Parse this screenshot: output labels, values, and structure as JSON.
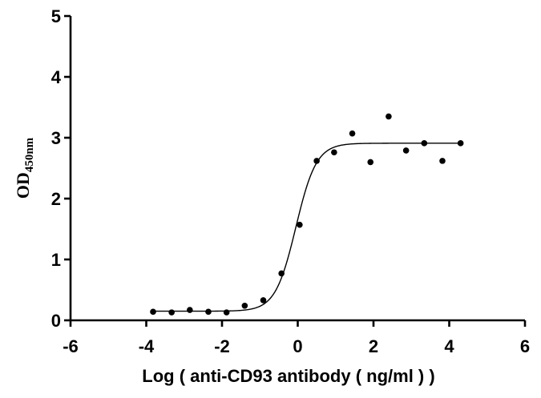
{
  "chart_data": {
    "type": "scatter",
    "ylabel_main": "OD",
    "ylabel_sub": "450nm",
    "xlabel": "Log ( anti-CD93 antibody ( ng/ml )    )",
    "xlim": [
      -6,
      6
    ],
    "ylim": [
      0,
      5
    ],
    "xticks": [
      "-6",
      "-4",
      "-2",
      "0",
      "2",
      "4",
      "6"
    ],
    "yticks": [
      "0",
      "1",
      "2",
      "3",
      "4",
      "5"
    ],
    "grid": false,
    "points": [
      {
        "x": -3.82,
        "y": 0.14
      },
      {
        "x": -3.33,
        "y": 0.13
      },
      {
        "x": -2.85,
        "y": 0.17
      },
      {
        "x": -2.36,
        "y": 0.14
      },
      {
        "x": -1.88,
        "y": 0.13
      },
      {
        "x": -1.4,
        "y": 0.24
      },
      {
        "x": -0.91,
        "y": 0.33
      },
      {
        "x": -0.43,
        "y": 0.77
      },
      {
        "x": 0.05,
        "y": 1.57
      },
      {
        "x": 0.5,
        "y": 2.62
      },
      {
        "x": 0.96,
        "y": 2.76
      },
      {
        "x": 1.44,
        "y": 3.07
      },
      {
        "x": 1.92,
        "y": 2.6
      },
      {
        "x": 2.4,
        "y": 3.35
      },
      {
        "x": 2.86,
        "y": 2.79
      },
      {
        "x": 3.34,
        "y": 2.91
      },
      {
        "x": 3.82,
        "y": 2.62
      },
      {
        "x": 4.3,
        "y": 2.91
      }
    ],
    "fit": {
      "model": "sigmoidal dose-response",
      "bottom": 0.15,
      "top": 2.91,
      "log_ec50": -0.05,
      "hill_slope": 1.6,
      "x_range": [
        -3.82,
        4.3
      ]
    }
  }
}
